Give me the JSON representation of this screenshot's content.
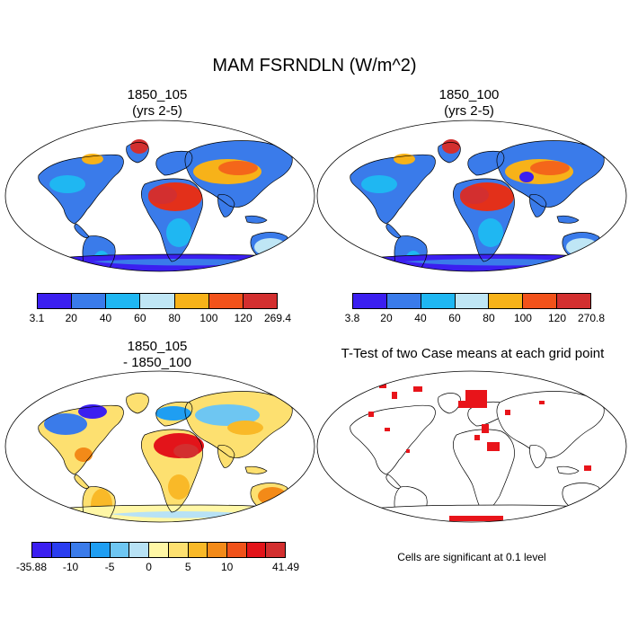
{
  "main_title": "MAM FSRNDLN (W/m^2)",
  "panels": [
    {
      "title_line1": "1850_105",
      "title_line2": "(yrs 2-5)"
    },
    {
      "title_line1": "1850_100",
      "title_line2": "(yrs 2-5)"
    },
    {
      "title_line1": "1850_105",
      "title_line2": "- 1850_100"
    },
    {
      "title_line1": "T-Test of two Case means at each grid point",
      "title_line2": ""
    }
  ],
  "colorbars": [
    {
      "labels": [
        "3.1",
        "20",
        "40",
        "60",
        "80",
        "100",
        "120",
        "269.4"
      ],
      "colors": [
        "#3b1ff0",
        "#3a7bea",
        "#1fb7f2",
        "#bfe6f5",
        "#f7b219",
        "#f2521a",
        "#d32f2f"
      ]
    },
    {
      "labels": [
        "3.8",
        "20",
        "40",
        "60",
        "80",
        "100",
        "120",
        "270.8"
      ],
      "colors": [
        "#3b1ff0",
        "#3a7bea",
        "#1fb7f2",
        "#bfe6f5",
        "#f7b219",
        "#f2521a",
        "#d32f2f"
      ]
    },
    {
      "labels": [
        "-35.88",
        "-10",
        "-5",
        "0",
        "5",
        "10",
        "41.49"
      ],
      "label_positions_note": "labels under boundaries 0,2,4,6,8,10,12",
      "colors": [
        "#3b1ff0",
        "#2a3df0",
        "#3a7bea",
        "#1f9ef2",
        "#6ec6f2",
        "#b8e2f5",
        "#fff7a6",
        "#fde070",
        "#f9b928",
        "#f38a18",
        "#f0521a",
        "#e3141a",
        "#d32f2f"
      ]
    }
  ],
  "significance_note": "Cells are significant at 0.1 level",
  "colors": {
    "sig": "#e8141a",
    "ocean": "#ffffff",
    "outline": "#000000"
  }
}
